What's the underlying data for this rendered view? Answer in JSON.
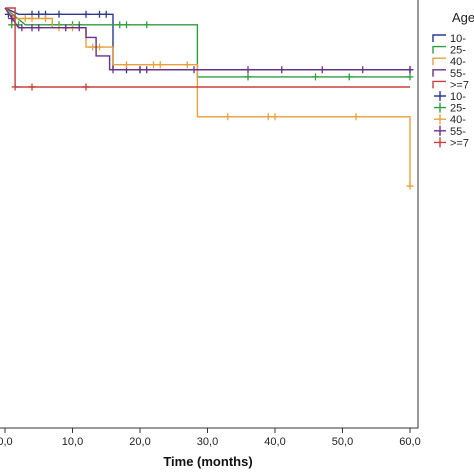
{
  "chart_data": {
    "type": "line",
    "subtype": "kaplan-meier",
    "title": "",
    "xlabel": "Time (months)",
    "ylabel": "",
    "xlim": [
      0,
      63
    ],
    "ylim": [
      0,
      1.0
    ],
    "x_ticks": [
      "0,0",
      "10,0",
      "20,0",
      "30,0",
      "40,0",
      "50,0",
      "60,0"
    ],
    "x_tick_values": [
      0,
      10,
      20,
      30,
      40,
      50,
      60
    ],
    "grid": false,
    "legend_position": "top-right",
    "legend_title": "Age",
    "legend_line_labels": [
      "10-",
      "25-",
      "40-",
      "55-",
      ">=7"
    ],
    "legend_censor_labels": [
      "10-",
      "25-",
      "40-",
      "55-",
      ">=7"
    ],
    "series": [
      {
        "color": "#2b3a8f",
        "steps": [
          [
            0,
            1.0
          ],
          [
            2,
            0.985
          ],
          [
            16,
            0.985
          ],
          [
            16,
            0.853
          ],
          [
            60,
            0.853
          ]
        ],
        "censored": [
          [
            0.5,
            0.985
          ],
          [
            4,
            0.985
          ],
          [
            5,
            0.985
          ],
          [
            6,
            0.985
          ],
          [
            8,
            0.985
          ],
          [
            12,
            0.985
          ],
          [
            14,
            0.985
          ],
          [
            15,
            0.985
          ],
          [
            18,
            0.853
          ],
          [
            20,
            0.853
          ],
          [
            60,
            0.853
          ]
        ]
      },
      {
        "color": "#2e9e3e",
        "steps": [
          [
            0,
            1.0
          ],
          [
            3,
            0.96
          ],
          [
            28.5,
            0.96
          ],
          [
            28.5,
            0.836
          ],
          [
            60,
            0.836
          ]
        ],
        "censored": [
          [
            1,
            0.96
          ],
          [
            2,
            0.96
          ],
          [
            7,
            0.96
          ],
          [
            8,
            0.96
          ],
          [
            10,
            0.96
          ],
          [
            11,
            0.96
          ],
          [
            17,
            0.96
          ],
          [
            18,
            0.96
          ],
          [
            21,
            0.96
          ],
          [
            36,
            0.836
          ],
          [
            46,
            0.836
          ],
          [
            51,
            0.836
          ],
          [
            60,
            0.836
          ]
        ]
      },
      {
        "color": "#e8a13a",
        "steps": [
          [
            0,
            1.0
          ],
          [
            1.5,
            0.975
          ],
          [
            7,
            0.975
          ],
          [
            7,
            0.953
          ],
          [
            12,
            0.953
          ],
          [
            12,
            0.907
          ],
          [
            16,
            0.907
          ],
          [
            16,
            0.865
          ],
          [
            28.5,
            0.865
          ],
          [
            28.5,
            0.741
          ],
          [
            60,
            0.741
          ],
          [
            60,
            0.576
          ]
        ],
        "censored": [
          [
            1,
            0.975
          ],
          [
            3,
            0.975
          ],
          [
            4,
            0.975
          ],
          [
            6,
            0.975
          ],
          [
            8,
            0.953
          ],
          [
            9,
            0.953
          ],
          [
            10,
            0.953
          ],
          [
            13,
            0.907
          ],
          [
            14,
            0.907
          ],
          [
            18,
            0.865
          ],
          [
            22,
            0.865
          ],
          [
            23,
            0.865
          ],
          [
            27,
            0.865
          ],
          [
            33,
            0.741
          ],
          [
            39,
            0.741
          ],
          [
            40,
            0.741
          ],
          [
            52,
            0.741
          ],
          [
            60,
            0.576
          ]
        ]
      },
      {
        "color": "#6a2f8a",
        "steps": [
          [
            0,
            1.0
          ],
          [
            2,
            0.953
          ],
          [
            12,
            0.953
          ],
          [
            12,
            0.93
          ],
          [
            13.5,
            0.93
          ],
          [
            13.5,
            0.886
          ],
          [
            15.5,
            0.886
          ],
          [
            15.5,
            0.853
          ],
          [
            60,
            0.853
          ]
        ],
        "censored": [
          [
            1,
            0.975
          ],
          [
            2.5,
            0.953
          ],
          [
            4,
            0.953
          ],
          [
            5,
            0.953
          ],
          [
            9,
            0.953
          ],
          [
            11,
            0.953
          ],
          [
            16,
            0.853
          ],
          [
            20,
            0.853
          ],
          [
            21,
            0.853
          ],
          [
            28,
            0.853
          ],
          [
            36,
            0.853
          ],
          [
            41,
            0.853
          ],
          [
            47,
            0.853
          ],
          [
            53,
            0.853
          ],
          [
            60,
            0.853
          ]
        ]
      },
      {
        "color": "#c8403c",
        "steps": [
          [
            0,
            1.0
          ],
          [
            1.5,
            1.0
          ],
          [
            1.5,
            0.812
          ],
          [
            60,
            0.812
          ]
        ],
        "censored": [
          [
            1.5,
            0.812
          ],
          [
            4,
            0.812
          ],
          [
            12,
            0.812
          ]
        ]
      }
    ]
  }
}
